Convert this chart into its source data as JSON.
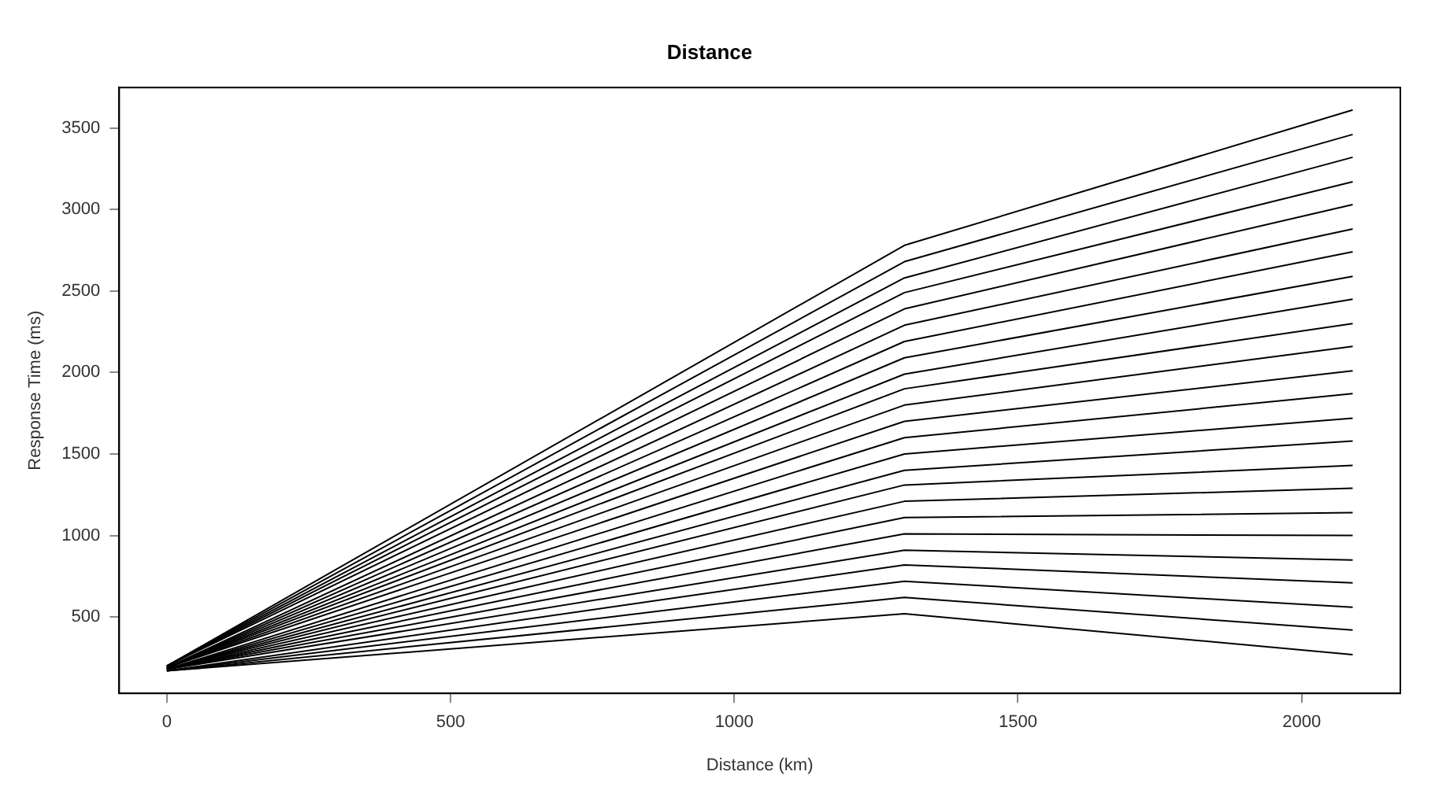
{
  "chart_data": {
    "type": "line",
    "title": "Distance",
    "xlabel": "Distance (km)",
    "ylabel": "Response Time (ms)",
    "x": [
      0,
      1300,
      2090
    ],
    "xlim": [
      -84,
      2174
    ],
    "ylim": [
      32,
      3748
    ],
    "xticks": [
      0,
      500,
      1000,
      1500,
      2000
    ],
    "yticks": [
      500,
      1000,
      1500,
      2000,
      2500,
      3000,
      3500
    ],
    "grid": false,
    "legend": false,
    "marker": "none",
    "line_style": "solid",
    "series": [
      {
        "color": "#000000",
        "values": [
          170,
          520,
          270
        ]
      },
      {
        "color": "#000000",
        "values": [
          170,
          620,
          420
        ]
      },
      {
        "color": "#000000",
        "values": [
          170,
          720,
          560
        ]
      },
      {
        "color": "#000000",
        "values": [
          170,
          820,
          710
        ]
      },
      {
        "color": "#000000",
        "values": [
          180,
          910,
          850
        ]
      },
      {
        "color": "#000000",
        "values": [
          180,
          1010,
          1000
        ]
      },
      {
        "color": "#000000",
        "values": [
          180,
          1110,
          1140
        ]
      },
      {
        "color": "#000000",
        "values": [
          180,
          1210,
          1290
        ]
      },
      {
        "color": "#000000",
        "values": [
          180,
          1310,
          1430
        ]
      },
      {
        "color": "#000000",
        "values": [
          180,
          1400,
          1580
        ]
      },
      {
        "color": "#000000",
        "values": [
          180,
          1500,
          1720
        ]
      },
      {
        "color": "#000000",
        "values": [
          180,
          1600,
          1870
        ]
      },
      {
        "color": "#000000",
        "values": [
          190,
          1700,
          2010
        ]
      },
      {
        "color": "#000000",
        "values": [
          190,
          1800,
          2160
        ]
      },
      {
        "color": "#000000",
        "values": [
          190,
          1900,
          2300
        ]
      },
      {
        "color": "#000000",
        "values": [
          190,
          1990,
          2450
        ]
      },
      {
        "color": "#000000",
        "values": [
          190,
          2090,
          2590
        ]
      },
      {
        "color": "#000000",
        "values": [
          190,
          2190,
          2740
        ]
      },
      {
        "color": "#000000",
        "values": [
          190,
          2290,
          2880
        ]
      },
      {
        "color": "#000000",
        "values": [
          200,
          2390,
          3030
        ]
      },
      {
        "color": "#000000",
        "values": [
          200,
          2490,
          3170
        ]
      },
      {
        "color": "#000000",
        "values": [
          200,
          2580,
          3320
        ]
      },
      {
        "color": "#000000",
        "values": [
          200,
          2680,
          3460
        ]
      },
      {
        "color": "#000000",
        "values": [
          200,
          2780,
          3610
        ]
      }
    ]
  }
}
